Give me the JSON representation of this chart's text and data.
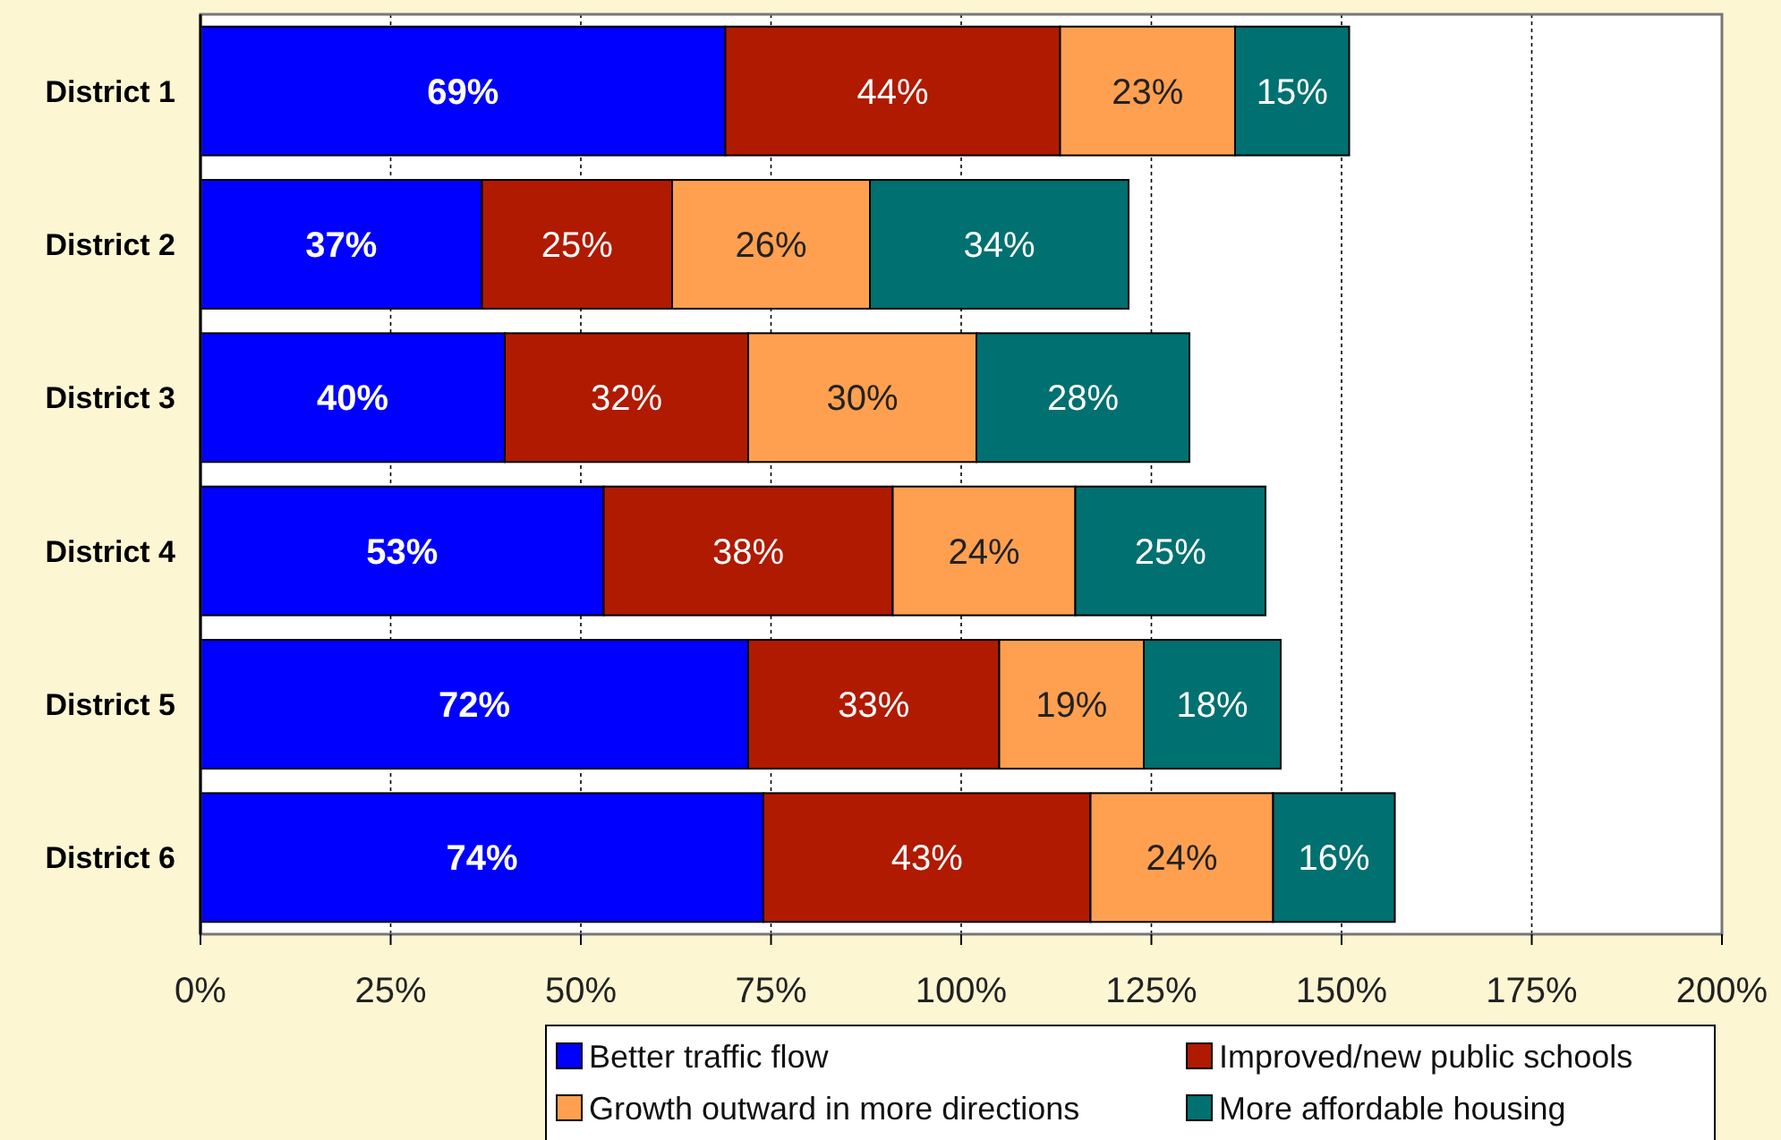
{
  "chart_data": {
    "type": "bar",
    "orientation": "horizontal",
    "stacked": true,
    "categories": [
      "District 1",
      "District 2",
      "District 3",
      "District 4",
      "District 5",
      "District 6"
    ],
    "series": [
      {
        "name": "Better traffic flow",
        "color": "#0000ff",
        "values": [
          69,
          37,
          40,
          53,
          72,
          74
        ],
        "value_labels": [
          "69%",
          "37%",
          "40%",
          "53%",
          "72%",
          "74%"
        ]
      },
      {
        "name": "Improved/new public schools",
        "color": "#b01a00",
        "values": [
          44,
          25,
          32,
          38,
          33,
          43
        ],
        "value_labels": [
          "44%",
          "25%",
          "32%",
          "38%",
          "33%",
          "43%"
        ]
      },
      {
        "name": "Growth outward in more directions",
        "color": "#ffa050",
        "values": [
          23,
          26,
          30,
          24,
          19,
          24
        ],
        "value_labels": [
          "23%",
          "26%",
          "30%",
          "24%",
          "19%",
          "24%"
        ]
      },
      {
        "name": "More affordable housing",
        "color": "#007070",
        "values": [
          15,
          34,
          28,
          25,
          18,
          16
        ],
        "value_labels": [
          "15%",
          "34%",
          "28%",
          "25%",
          "18%",
          "16%"
        ]
      }
    ],
    "xlim": [
      0,
      200
    ],
    "xticks": [
      {
        "value": 0,
        "label": "0%"
      },
      {
        "value": 25,
        "label": "25%"
      },
      {
        "value": 50,
        "label": "50%"
      },
      {
        "value": 75,
        "label": "75%"
      },
      {
        "value": 100,
        "label": "100%"
      },
      {
        "value": 125,
        "label": "125%"
      },
      {
        "value": 150,
        "label": "150%"
      },
      {
        "value": 175,
        "label": "175%"
      },
      {
        "value": 200,
        "label": "200%"
      }
    ],
    "grid": "x",
    "legend": "bottom right"
  }
}
